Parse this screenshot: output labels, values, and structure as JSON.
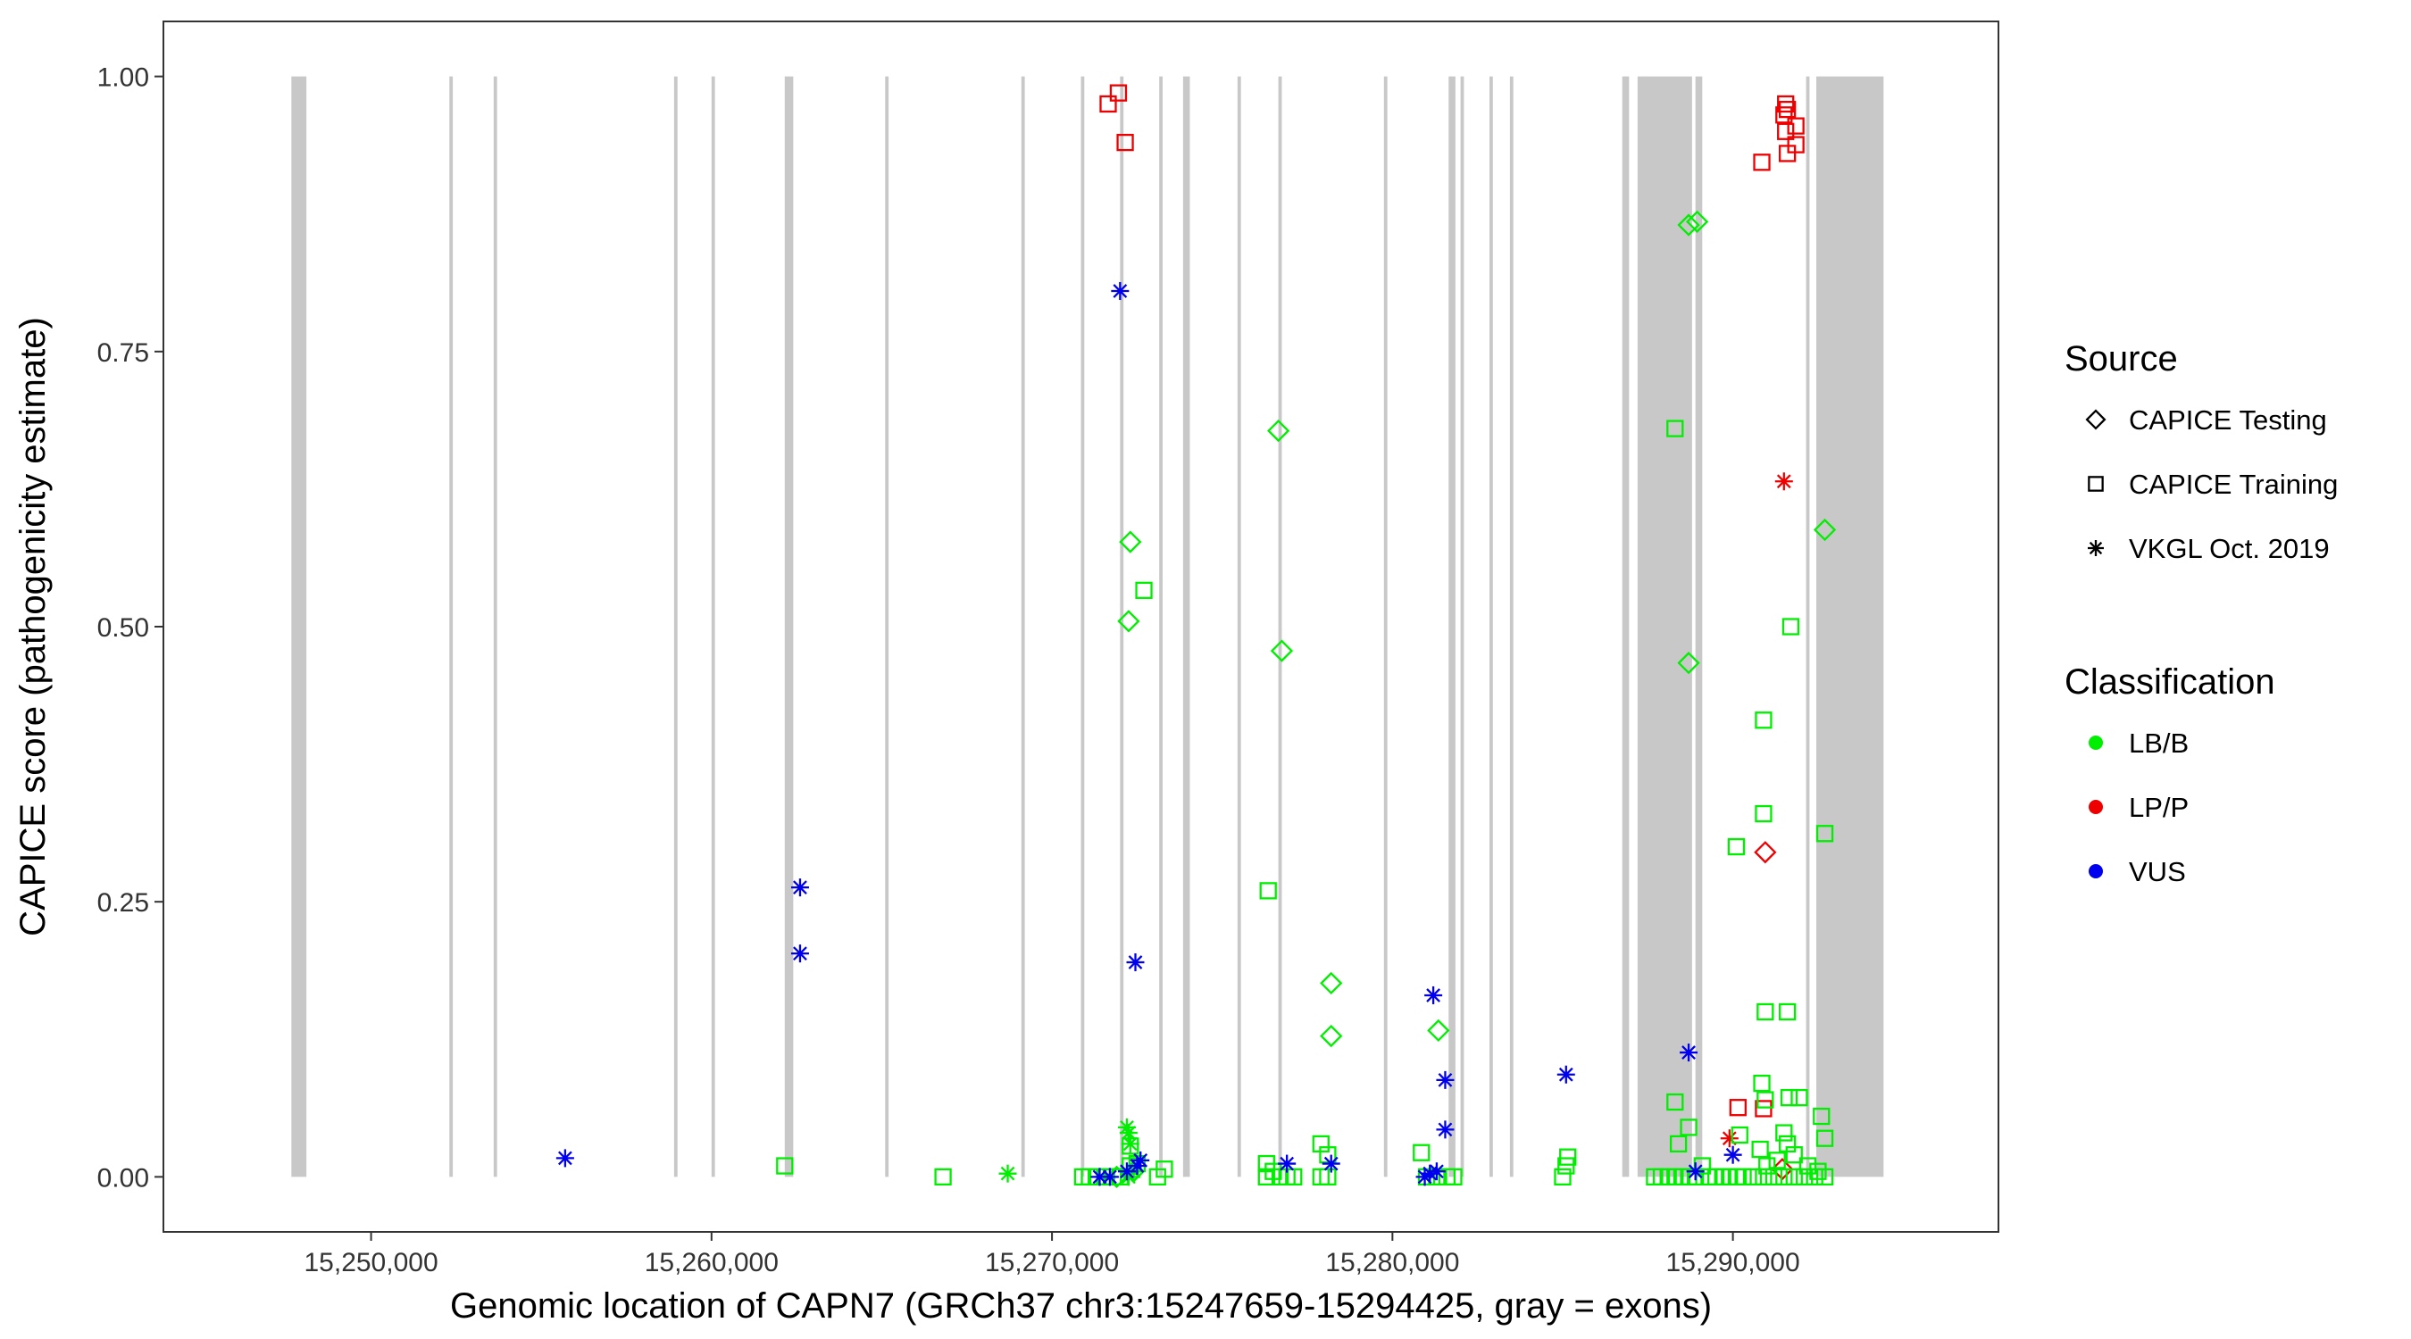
{
  "chart_data": {
    "type": "scatter",
    "xlabel": "Genomic location of CAPN7 (GRCh37 chr3:15247659-15294425, gray = exons)",
    "ylabel": "CAPICE score (pathogenicity estimate)",
    "xlim": [
      15243900,
      15297800
    ],
    "ylim": [
      -0.05,
      1.05
    ],
    "x_ticks": [
      15250000,
      15260000,
      15270000,
      15280000,
      15290000
    ],
    "x_tick_labels": [
      "15,250,000",
      "15,260,000",
      "15,270,000",
      "15,280,000",
      "15,290,000"
    ],
    "y_ticks": [
      0,
      0.25,
      0.5,
      0.75,
      1.0
    ],
    "y_tick_labels": [
      "0.00",
      "0.25",
      "0.50",
      "0.75",
      "1.00"
    ],
    "grid": false,
    "exon_color": "#c8c8c8",
    "exons": [
      [
        15247659,
        15248100
      ],
      [
        15252300,
        15252400
      ],
      [
        15253600,
        15253700
      ],
      [
        15258900,
        15259000
      ],
      [
        15260000,
        15260100
      ],
      [
        15262150,
        15262400
      ],
      [
        15265100,
        15265200
      ],
      [
        15269100,
        15269200
      ],
      [
        15270850,
        15270950
      ],
      [
        15272000,
        15272100
      ],
      [
        15273150,
        15273250
      ],
      [
        15273850,
        15274050
      ],
      [
        15275450,
        15275550
      ],
      [
        15276650,
        15276750
      ],
      [
        15279750,
        15279850
      ],
      [
        15281650,
        15281850
      ],
      [
        15282000,
        15282100
      ],
      [
        15282850,
        15282950
      ],
      [
        15283450,
        15283550
      ],
      [
        15286750,
        15286950
      ],
      [
        15287200,
        15288800
      ],
      [
        15288900,
        15289100
      ],
      [
        15292150,
        15292250
      ],
      [
        15292450,
        15294425
      ]
    ],
    "legend": {
      "position": "right",
      "source_title": "Source",
      "source_items": [
        {
          "label": "CAPICE Testing",
          "shape": "diamond"
        },
        {
          "label": "CAPICE Training",
          "shape": "square"
        },
        {
          "label": "VKGL Oct. 2019",
          "shape": "asterisk"
        }
      ],
      "class_title": "Classification",
      "class_items": [
        {
          "label": "LB/B",
          "color": "#00ee00"
        },
        {
          "label": "LP/P",
          "color": "#ee0000"
        },
        {
          "label": "VUS",
          "color": "#0000ee"
        }
      ]
    },
    "series": [
      {
        "source": "CAPICE Training",
        "classification": "LP/P",
        "points": [
          [
            15271650,
            0.975
          ],
          [
            15271950,
            0.985
          ],
          [
            15272150,
            0.94
          ],
          [
            15290850,
            0.922
          ],
          [
            15291500,
            0.965
          ],
          [
            15291550,
            0.975
          ],
          [
            15291600,
            0.97
          ],
          [
            15291550,
            0.95
          ],
          [
            15291600,
            0.93
          ],
          [
            15291850,
            0.955
          ],
          [
            15291850,
            0.938
          ],
          [
            15290150,
            0.063
          ],
          [
            15290900,
            0.062
          ]
        ]
      },
      {
        "source": "CAPICE Testing",
        "classification": "LP/P",
        "points": [
          [
            15290950,
            0.295
          ],
          [
            15291450,
            0.007
          ]
        ]
      },
      {
        "source": "VKGL Oct. 2019",
        "classification": "LP/P",
        "points": [
          [
            15291500,
            0.632
          ],
          [
            15289900,
            0.035
          ]
        ]
      },
      {
        "source": "CAPICE Training",
        "classification": "LB/B",
        "points": [
          [
            15262150,
            0.01
          ],
          [
            15266800,
            0.0
          ],
          [
            15270900,
            0.0
          ],
          [
            15271100,
            0.0
          ],
          [
            15271300,
            0.0
          ],
          [
            15271600,
            0.0
          ],
          [
            15271800,
            0.0
          ],
          [
            15272000,
            0.0
          ],
          [
            15272300,
            0.028
          ],
          [
            15272300,
            0.01
          ],
          [
            15272500,
            0.012
          ],
          [
            15273100,
            0.0
          ],
          [
            15273300,
            0.007
          ],
          [
            15272700,
            0.533
          ],
          [
            15276350,
            0.26
          ],
          [
            15276300,
            0.0
          ],
          [
            15276300,
            0.012
          ],
          [
            15276500,
            0.005
          ],
          [
            15276700,
            0.0
          ],
          [
            15276900,
            0.0
          ],
          [
            15277100,
            0.0
          ],
          [
            15277900,
            0.03
          ],
          [
            15278100,
            0.02
          ],
          [
            15278100,
            0.0
          ],
          [
            15277900,
            0.0
          ],
          [
            15280850,
            0.022
          ],
          [
            15281000,
            0.0
          ],
          [
            15281300,
            0.0
          ],
          [
            15281600,
            0.0
          ],
          [
            15281800,
            0.0
          ],
          [
            15285000,
            0.0
          ],
          [
            15285100,
            0.01
          ],
          [
            15285150,
            0.018
          ],
          [
            15288300,
            0.68
          ],
          [
            15288300,
            0.068
          ],
          [
            15288400,
            0.03
          ],
          [
            15288700,
            0.045
          ],
          [
            15287700,
            0.0
          ],
          [
            15287900,
            0.0
          ],
          [
            15288100,
            0.0
          ],
          [
            15288300,
            0.0
          ],
          [
            15288500,
            0.0
          ],
          [
            15288700,
            0.0
          ],
          [
            15288900,
            0.0
          ],
          [
            15289100,
            0.01
          ],
          [
            15289300,
            0.0
          ],
          [
            15289500,
            0.0
          ],
          [
            15289700,
            0.0
          ],
          [
            15289900,
            0.0
          ],
          [
            15290100,
            0.0
          ],
          [
            15290300,
            0.0
          ],
          [
            15290100,
            0.3
          ],
          [
            15290900,
            0.415
          ],
          [
            15290900,
            0.33
          ],
          [
            15290950,
            0.15
          ],
          [
            15291600,
            0.15
          ],
          [
            15290850,
            0.085
          ],
          [
            15290950,
            0.07
          ],
          [
            15291650,
            0.072
          ],
          [
            15291950,
            0.072
          ],
          [
            15291700,
            0.5
          ],
          [
            15292700,
            0.312
          ],
          [
            15292600,
            0.055
          ],
          [
            15292700,
            0.035
          ],
          [
            15290200,
            0.038
          ],
          [
            15290800,
            0.025
          ],
          [
            15291000,
            0.01
          ],
          [
            15291300,
            0.015
          ],
          [
            15291500,
            0.04
          ],
          [
            15291600,
            0.03
          ],
          [
            15291800,
            0.02
          ],
          [
            15292200,
            0.01
          ],
          [
            15292500,
            0.005
          ],
          [
            15290600,
            0.0
          ],
          [
            15290900,
            0.0
          ],
          [
            15291200,
            0.0
          ],
          [
            15291500,
            0.0
          ],
          [
            15291800,
            0.0
          ],
          [
            15292100,
            0.0
          ],
          [
            15292400,
            0.0
          ],
          [
            15292700,
            0.0
          ]
        ]
      },
      {
        "source": "CAPICE Testing",
        "classification": "LB/B",
        "points": [
          [
            15272300,
            0.577
          ],
          [
            15272250,
            0.505
          ],
          [
            15276650,
            0.678
          ],
          [
            15276750,
            0.478
          ],
          [
            15278200,
            0.176
          ],
          [
            15278200,
            0.128
          ],
          [
            15281350,
            0.133
          ],
          [
            15288700,
            0.865
          ],
          [
            15288950,
            0.868
          ],
          [
            15288700,
            0.467
          ],
          [
            15292700,
            0.588
          ],
          [
            15271900,
            0.0
          ],
          [
            15272400,
            0.005
          ]
        ]
      },
      {
        "source": "VKGL Oct. 2019",
        "classification": "LB/B",
        "points": [
          [
            15268700,
            0.003
          ],
          [
            15272200,
            0.045
          ],
          [
            15272250,
            0.04
          ],
          [
            15272300,
            0.03
          ],
          [
            15272250,
            0.0
          ],
          [
            15272400,
            0.005
          ]
        ]
      },
      {
        "source": "VKGL Oct. 2019",
        "classification": "VUS",
        "points": [
          [
            15255700,
            0.017
          ],
          [
            15262600,
            0.263
          ],
          [
            15262600,
            0.203
          ],
          [
            15272000,
            0.805
          ],
          [
            15272450,
            0.195
          ],
          [
            15281200,
            0.165
          ],
          [
            15281550,
            0.088
          ],
          [
            15281550,
            0.043
          ],
          [
            15285100,
            0.093
          ],
          [
            15288700,
            0.113
          ],
          [
            15271400,
            0.0
          ],
          [
            15271700,
            0.0
          ],
          [
            15272200,
            0.005
          ],
          [
            15272500,
            0.01
          ],
          [
            15272600,
            0.015
          ],
          [
            15276900,
            0.012
          ],
          [
            15278200,
            0.012
          ],
          [
            15280950,
            0.0
          ],
          [
            15281100,
            0.003
          ],
          [
            15281300,
            0.005
          ],
          [
            15288900,
            0.005
          ],
          [
            15290000,
            0.02
          ]
        ]
      }
    ]
  }
}
